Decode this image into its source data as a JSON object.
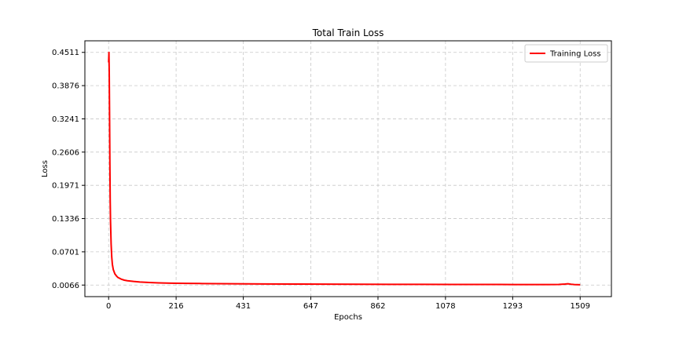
{
  "chart_data": {
    "type": "line",
    "title": "Total Train Loss",
    "xlabel": "Epochs",
    "ylabel": "Loss",
    "xlim": [
      -76,
      1609
    ],
    "ylim": [
      -0.0155,
      0.4732
    ],
    "xticks": [
      0,
      216,
      431,
      647,
      862,
      1078,
      1293,
      1509
    ],
    "xtick_labels": [
      "0",
      "216",
      "431",
      "647",
      "862",
      "1078",
      "1293",
      "1509"
    ],
    "yticks": [
      0.0066,
      0.0701,
      0.1336,
      0.1971,
      0.2606,
      0.3241,
      0.3876,
      0.4511
    ],
    "ytick_labels": [
      "0.0066",
      "0.0701",
      "0.1336",
      "0.1971",
      "0.2606",
      "0.3241",
      "0.3876",
      "0.4511"
    ],
    "grid": true,
    "legend_position": "top-right",
    "series": [
      {
        "name": "Training Loss",
        "color": "#ff0000",
        "x": [
          0,
          1,
          2,
          3,
          4,
          5,
          6,
          8,
          10,
          12,
          15,
          20,
          25,
          30,
          40,
          50,
          60,
          80,
          100,
          130,
          160,
          200,
          250,
          300,
          350,
          400,
          500,
          600,
          700,
          800,
          900,
          1000,
          1100,
          1200,
          1300,
          1400,
          1440,
          1460,
          1470,
          1480,
          1490,
          1500,
          1509
        ],
        "y": [
          0.432,
          0.451,
          0.41,
          0.33,
          0.24,
          0.17,
          0.13,
          0.085,
          0.06,
          0.046,
          0.036,
          0.028,
          0.024,
          0.021,
          0.018,
          0.016,
          0.0148,
          0.0135,
          0.0125,
          0.0115,
          0.0108,
          0.0102,
          0.0098,
          0.0095,
          0.0092,
          0.009,
          0.0087,
          0.0085,
          0.0083,
          0.0081,
          0.008,
          0.0079,
          0.0078,
          0.0077,
          0.0076,
          0.0075,
          0.0078,
          0.0085,
          0.009,
          0.0082,
          0.0076,
          0.0074,
          0.0072
        ]
      }
    ]
  }
}
